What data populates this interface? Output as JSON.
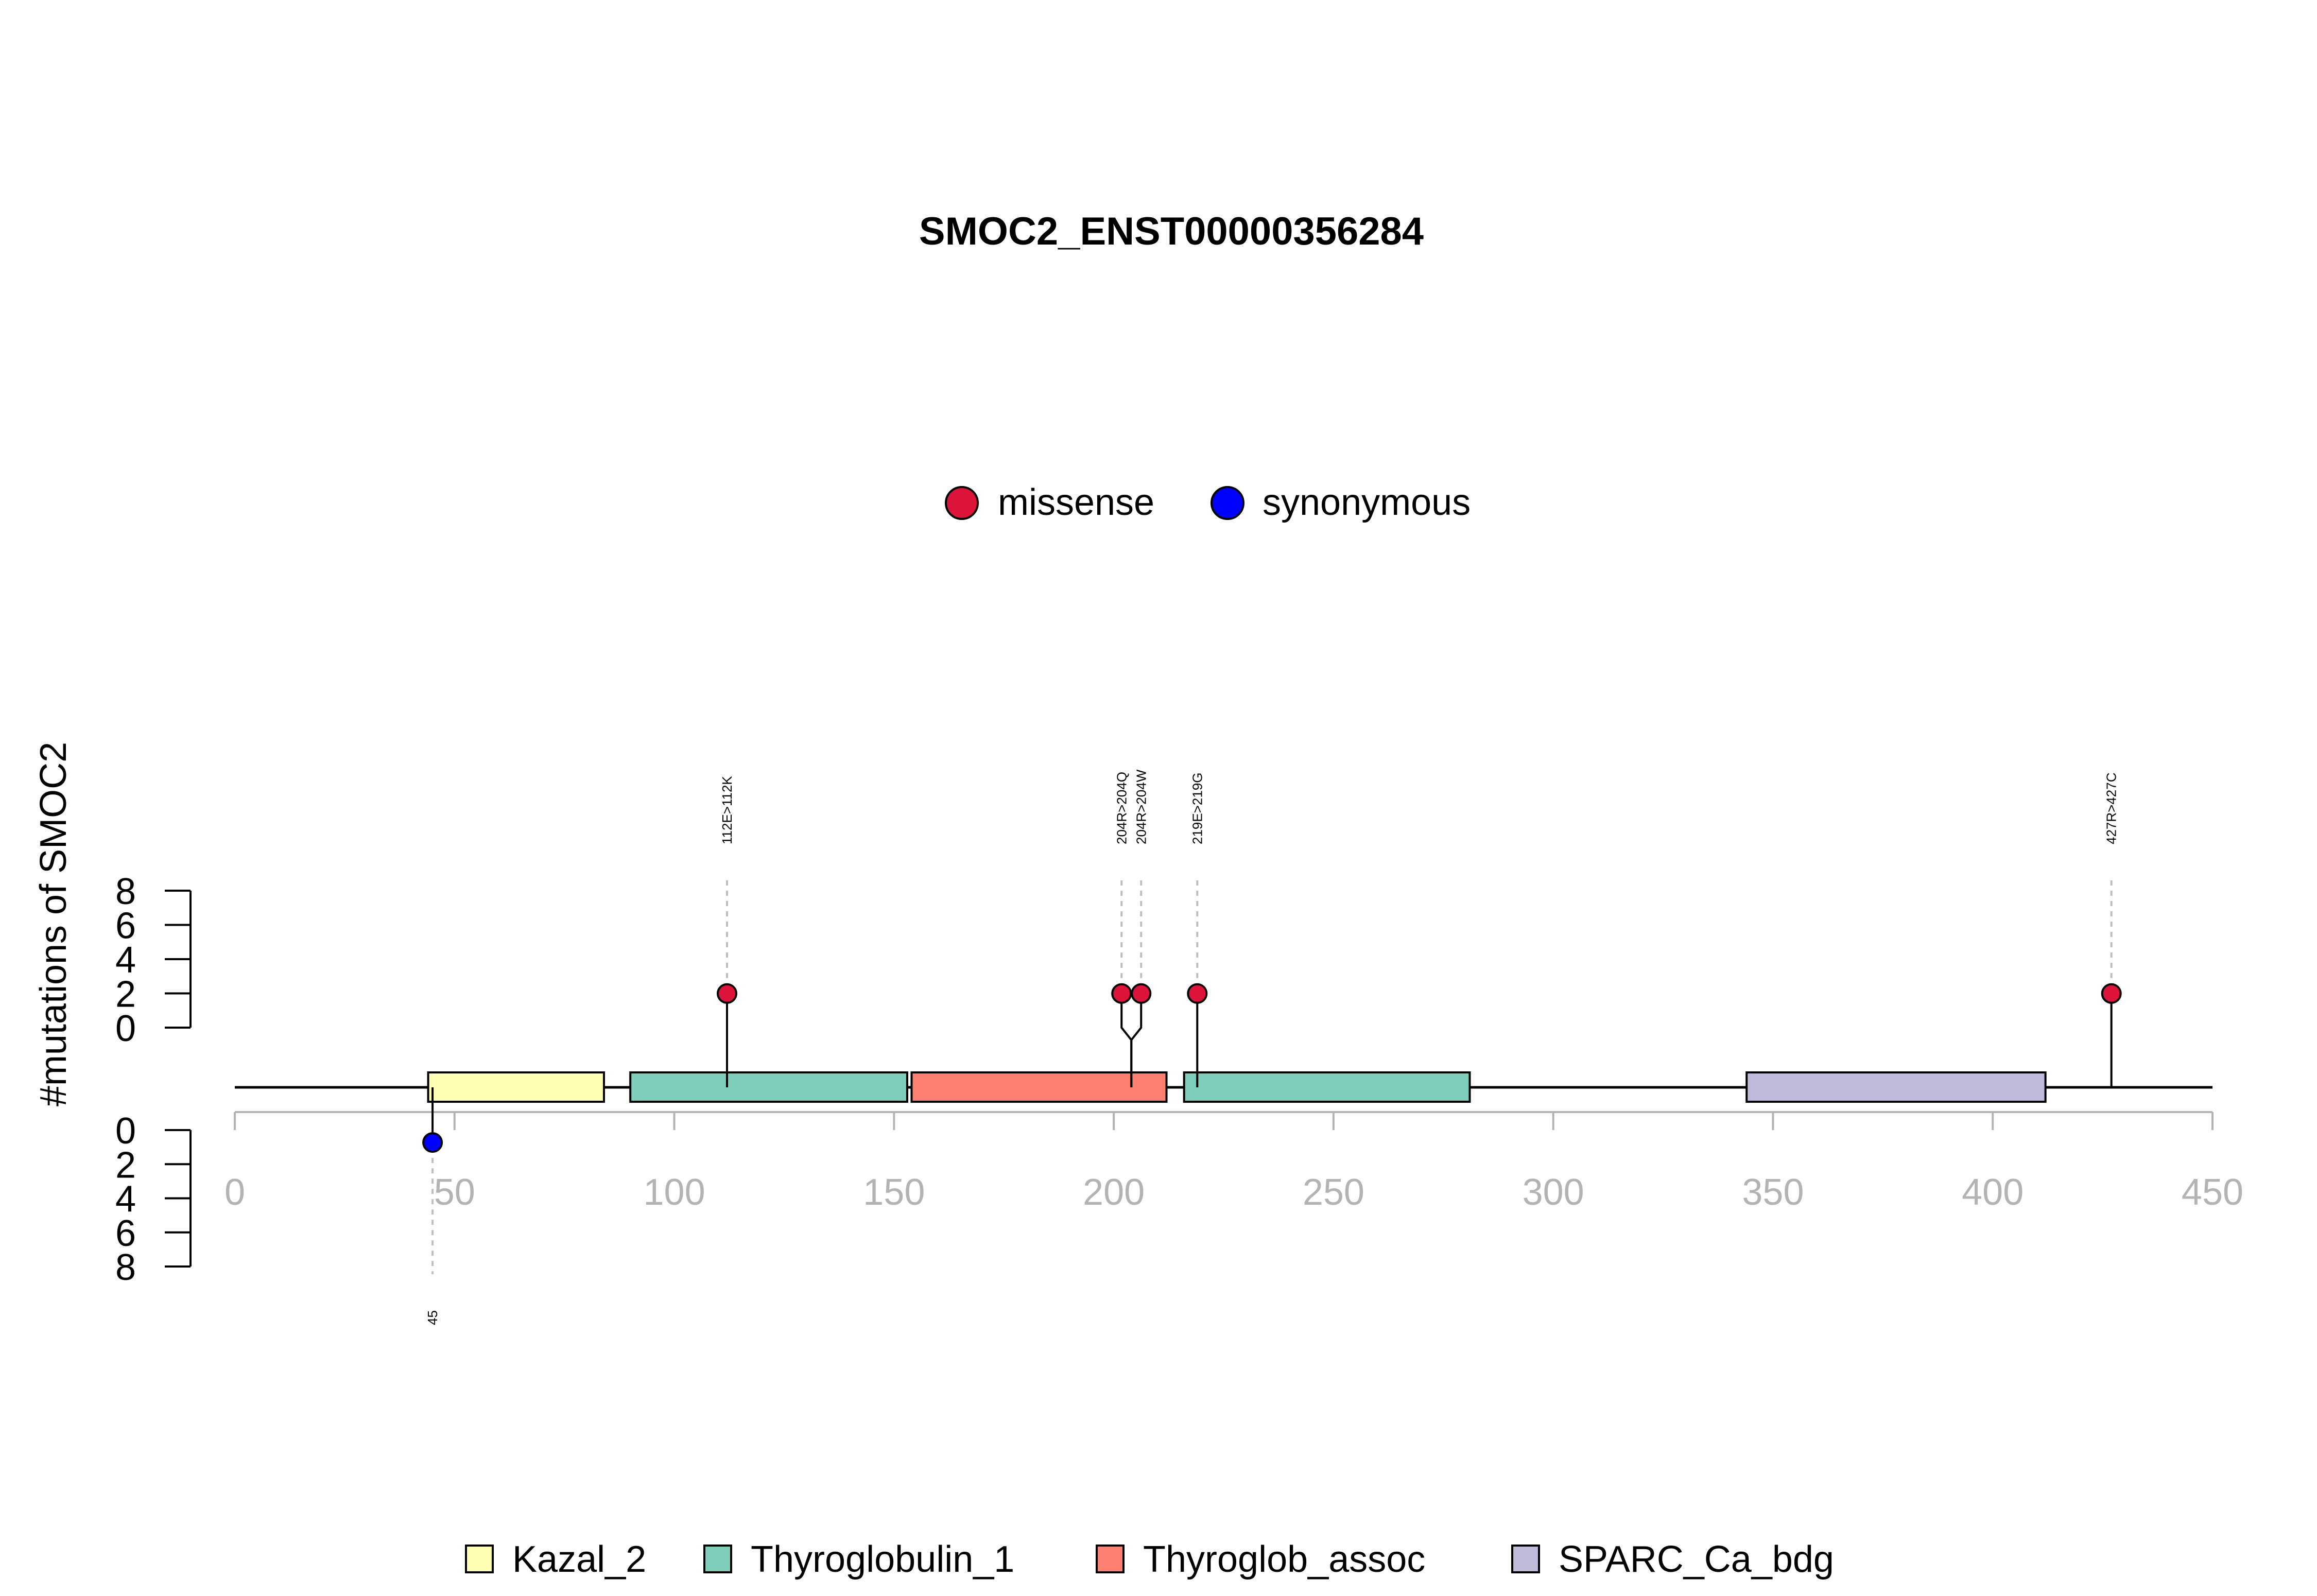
{
  "chart_data": {
    "type": "lollipop",
    "title": "SMOC2_ENST00000356284",
    "ylabel": "#mutations of SMOC2",
    "xlim": [
      0,
      450
    ],
    "x_ticks": [
      "0",
      "50",
      "100",
      "150",
      "200",
      "250",
      "300",
      "350",
      "400",
      "450"
    ],
    "y_ticks": [
      "0",
      "2",
      "4",
      "6",
      "8"
    ],
    "y_range": [
      0,
      8
    ],
    "mutation_legend": [
      {
        "label": "missense",
        "color": "#DC143C"
      },
      {
        "label": "synonymous",
        "color": "#0000FF"
      }
    ],
    "domains": [
      {
        "name": "Kazal_2",
        "start": 44,
        "end": 84,
        "color": "#FFFFB3"
      },
      {
        "name": "Thyroglobulin_1",
        "start": 90,
        "end": 153,
        "color": "#7FCDBB"
      },
      {
        "name": "Thyroglob_assoc",
        "start": 154,
        "end": 212,
        "color": "#FB8072"
      },
      {
        "name": "Thyroglobulin_1",
        "start": 216,
        "end": 281,
        "color": "#7FCDBB"
      },
      {
        "name": "SPARC_Ca_bdg",
        "start": 344,
        "end": 412,
        "color": "#BEBADA"
      }
    ],
    "domain_legend": [
      {
        "label": "Kazal_2",
        "color": "#FFFFB3"
      },
      {
        "label": "Thyroglobulin_1",
        "color": "#7FCDBB"
      },
      {
        "label": "Thyroglob_assoc",
        "color": "#FB8072"
      },
      {
        "label": "SPARC_Ca_bdg",
        "color": "#BEBADA"
      }
    ],
    "top_mutations": [
      {
        "position": 112,
        "count": 1,
        "type": "missense",
        "label": "112E>112K"
      },
      {
        "position": 204,
        "count": 1,
        "type": "missense",
        "label": "204R>204Q"
      },
      {
        "position": 204,
        "count": 1,
        "type": "missense",
        "label": "204R>204W"
      },
      {
        "position": 219,
        "count": 1,
        "type": "missense",
        "label": "219E>219G"
      },
      {
        "position": 427,
        "count": 1,
        "type": "missense",
        "label": "427R>427C"
      }
    ],
    "bottom_mutations": [
      {
        "position": 45,
        "count": 1,
        "type": "synonymous",
        "label": "45"
      }
    ]
  }
}
